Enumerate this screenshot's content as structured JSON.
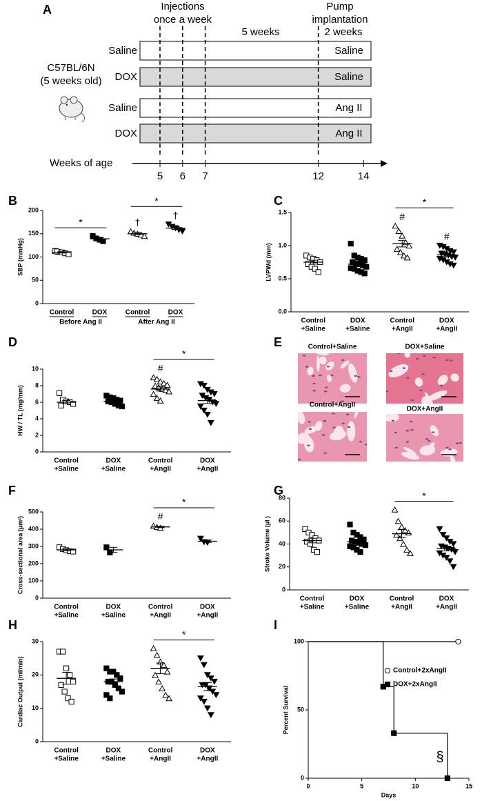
{
  "figure": {
    "panel_a": {
      "panel": "A",
      "header_injections": [
        "Injections",
        "once a week"
      ],
      "header_pump": [
        "Pump",
        "implantation"
      ],
      "periods": [
        "5 weeks",
        "2 weeks"
      ],
      "strain": [
        "C57BL/6N",
        "(5 weeks old)"
      ],
      "rows": [
        {
          "treatment": "Saline",
          "infusion": "Saline",
          "shaded": false
        },
        {
          "treatment": "DOX",
          "infusion": "Saline",
          "shaded": true
        },
        {
          "treatment": "Saline",
          "infusion": "Ang II",
          "shaded": false
        },
        {
          "treatment": "DOX",
          "infusion": "Ang II",
          "shaded": true
        }
      ],
      "axis_label": "Weeks of age",
      "weeks": [
        5,
        6,
        7,
        12,
        14
      ]
    },
    "panel_e": {
      "panel": "E",
      "images": [
        "Control+Saline",
        "DOX+Saline",
        "Control+AngII",
        "DOX+AngII"
      ]
    }
  },
  "chart_data": [
    {
      "type": "dotplot",
      "panel": "B",
      "ylabel": "SBP (mmHg)",
      "ylim": [
        0,
        200
      ],
      "yticks": [
        0,
        50,
        100,
        150,
        200
      ],
      "sections": [
        "Before Ang II",
        "After Ang II"
      ],
      "groups": [
        {
          "label": [
            "Control"
          ],
          "marker": "square-open",
          "values": [
            113,
            111,
            110,
            108,
            106,
            112
          ],
          "mean": 110,
          "sem": 1.5,
          "bracket": "*"
        },
        {
          "label": [
            "DOX"
          ],
          "marker": "square",
          "values": [
            145,
            140,
            137,
            134
          ],
          "mean": 139,
          "sem": 2.5
        },
        {
          "label": [
            "Control"
          ],
          "marker": "triangle-open",
          "values": [
            155,
            152,
            150,
            148,
            145
          ],
          "mean": 150,
          "sem": 2,
          "symbol": "†",
          "bracket": "*"
        },
        {
          "label": [
            "DOX"
          ],
          "marker": "triangle-down",
          "values": [
            170,
            165,
            162,
            158,
            155
          ],
          "mean": 162,
          "sem": 3,
          "symbol": "†"
        }
      ]
    },
    {
      "type": "dotplot",
      "panel": "C",
      "ylabel": "LVPWd (mm)",
      "ylim": [
        0,
        1.5
      ],
      "yticks": [
        {
          "value": 0,
          "label": "0.0"
        },
        {
          "value": 0.5,
          "label": "0.5"
        },
        {
          "value": 1,
          "label": "1.0"
        },
        {
          "value": 1.5,
          "label": "1.5"
        }
      ],
      "groups": [
        {
          "label": [
            "Control",
            "+Saline"
          ],
          "marker": "square-open",
          "values": [
            0.85,
            0.82,
            0.8,
            0.78,
            0.75,
            0.72,
            0.68,
            0.65,
            0.6
          ],
          "mean": 0.75,
          "sem": 0.03
        },
        {
          "label": [
            "DOX",
            "+Saline"
          ],
          "marker": "square",
          "values": [
            1.03,
            0.85,
            0.82,
            0.8,
            0.78,
            0.75,
            0.73,
            0.72,
            0.7,
            0.68,
            0.66,
            0.65,
            0.62,
            0.6,
            0.58
          ],
          "mean": 0.72,
          "sem": 0.03
        },
        {
          "label": [
            "Control",
            "+AngII"
          ],
          "marker": "triangle-open",
          "values": [
            1.3,
            1.22,
            1.15,
            1.05,
            1.0,
            0.95,
            0.9,
            0.85,
            0.82
          ],
          "mean": 1.03,
          "sem": 0.05,
          "symbol": "#",
          "bracket": "*"
        },
        {
          "label": [
            "DOX",
            "+AngII"
          ],
          "marker": "triangle-down",
          "values": [
            1.0,
            0.98,
            0.95,
            0.92,
            0.9,
            0.88,
            0.87,
            0.85,
            0.83,
            0.82,
            0.8,
            0.78,
            0.75,
            0.72,
            0.7
          ],
          "mean": 0.86,
          "sem": 0.02,
          "symbol": "#"
        }
      ]
    },
    {
      "type": "dotplot",
      "panel": "D",
      "ylabel": "HW / TL (mg/mm)",
      "ylim": [
        0,
        10
      ],
      "yticks": [
        0,
        2,
        4,
        6,
        8,
        10
      ],
      "groups": [
        {
          "label": [
            "Control",
            "+Saline"
          ],
          "marker": "square-open",
          "values": [
            7.1,
            6.3,
            6.1,
            6.0,
            5.8,
            5.6
          ],
          "mean": 6.0,
          "sem": 0.2
        },
        {
          "label": [
            "DOX",
            "+Saline"
          ],
          "marker": "square",
          "values": [
            6.8,
            6.6,
            6.5,
            6.3,
            6.2,
            6.1,
            6.0,
            5.8,
            5.6,
            5.5
          ],
          "mean": 6.1,
          "sem": 0.15
        },
        {
          "label": [
            "Control",
            "+AngII"
          ],
          "marker": "triangle-open",
          "values": [
            9.0,
            8.8,
            8.5,
            8.3,
            8.1,
            8.0,
            7.8,
            7.6,
            7.5,
            7.3,
            7.0,
            6.5,
            6.2
          ],
          "mean": 7.6,
          "sem": 0.25,
          "symbol": "#",
          "bracket": "*"
        },
        {
          "label": [
            "DOX",
            "+AngII"
          ],
          "marker": "triangle-down",
          "values": [
            8.2,
            8.0,
            7.5,
            7.2,
            7.0,
            6.8,
            6.5,
            6.3,
            6.0,
            5.8,
            5.5,
            5.0,
            4.5,
            3.5
          ],
          "mean": 6.2,
          "sem": 0.35
        }
      ]
    },
    {
      "type": "dotplot",
      "panel": "F",
      "ylabel": "Cross-sectional area (µm²)",
      "ylim": [
        0,
        500
      ],
      "yticks": [
        0,
        100,
        200,
        300,
        400,
        500
      ],
      "groups": [
        {
          "label": [
            "Control",
            "+Saline"
          ],
          "marker": "square-open",
          "values": [
            295,
            285,
            278,
            272,
            270
          ],
          "mean": 280,
          "sem": 5
        },
        {
          "label": [
            "DOX",
            "+Saline"
          ],
          "marker": "square",
          "values": [
            295,
            265
          ],
          "mean": 280,
          "sem": 15
        },
        {
          "label": [
            "Control",
            "+AngII"
          ],
          "marker": "triangle-open",
          "values": [
            420,
            412,
            408
          ],
          "mean": 413,
          "sem": 4,
          "symbol": "#",
          "bracket": "*"
        },
        {
          "label": [
            "DOX",
            "+AngII"
          ],
          "marker": "triangle-down",
          "values": [
            345,
            325,
            322
          ],
          "mean": 330,
          "sem": 7
        }
      ]
    },
    {
      "type": "dotplot",
      "panel": "G",
      "ylabel": "Stroke Volume (µl )",
      "ylim": [
        0,
        80
      ],
      "yticks": [
        0,
        20,
        40,
        60,
        80
      ],
      "groups": [
        {
          "label": [
            "Control",
            "+Saline"
          ],
          "marker": "square-open",
          "values": [
            53,
            50,
            48,
            45,
            43,
            42,
            40,
            35,
            33
          ],
          "mean": 43,
          "sem": 2
        },
        {
          "label": [
            "DOX",
            "+Saline"
          ],
          "marker": "square",
          "values": [
            57,
            50,
            48,
            46,
            44,
            43,
            42,
            41,
            40,
            39,
            38,
            37,
            35,
            33
          ],
          "mean": 42,
          "sem": 1.5
        },
        {
          "label": [
            "Control",
            "+AngII"
          ],
          "marker": "triangle-open",
          "values": [
            70,
            60,
            55,
            52,
            50,
            48,
            45,
            40,
            35,
            32
          ],
          "mean": 49,
          "sem": 3.5,
          "bracket": "*"
        },
        {
          "label": [
            "DOX",
            "+AngII"
          ],
          "marker": "triangle-down",
          "values": [
            53,
            48,
            45,
            42,
            40,
            38,
            37,
            36,
            35,
            33,
            32,
            30,
            28,
            25,
            20
          ],
          "mean": 36,
          "sem": 2
        }
      ]
    },
    {
      "type": "dotplot",
      "panel": "H",
      "ylabel": "Cardiac Output (ml/min)",
      "ylim": [
        0,
        30
      ],
      "yticks": [
        0,
        10,
        20,
        30
      ],
      "groups": [
        {
          "label": [
            "Control",
            "+Saline"
          ],
          "marker": "square-open",
          "values": [
            27,
            27,
            22,
            20,
            18,
            17,
            15,
            13,
            12
          ],
          "mean": 19,
          "sem": 1.8
        },
        {
          "label": [
            "DOX",
            "+Saline"
          ],
          "marker": "square",
          "values": [
            22,
            21,
            21,
            20,
            19,
            18,
            18,
            17,
            16,
            15,
            14,
            13
          ],
          "mean": 18,
          "sem": 0.8
        },
        {
          "label": [
            "Control",
            "+AngII"
          ],
          "marker": "triangle-open",
          "values": [
            28,
            26,
            24,
            23,
            21,
            20,
            18,
            16,
            14,
            13
          ],
          "mean": 22,
          "sem": 1.6,
          "bracket": "*"
        },
        {
          "label": [
            "DOX",
            "+AngII"
          ],
          "marker": "triangle-down",
          "values": [
            25,
            23,
            20,
            19,
            18,
            17,
            17,
            16,
            15,
            14,
            13,
            12,
            10,
            8
          ],
          "mean": 16.5,
          "sem": 1.2
        }
      ]
    },
    {
      "type": "survival",
      "panel": "I",
      "ylabel": "Percent Survival",
      "xlabel": "Days",
      "xlim": [
        0,
        15
      ],
      "xticks": [
        0,
        5,
        10,
        15
      ],
      "ylim": [
        0,
        100
      ],
      "yticks": [
        0,
        50,
        100
      ],
      "annotation": "§",
      "series": [
        {
          "name": "Control+2xAngII",
          "marker": "circle-open",
          "x": [
            0,
            14
          ],
          "values": [
            100,
            100
          ]
        },
        {
          "name": "DOX+2xAngII",
          "marker": "square",
          "x": [
            0,
            7,
            8,
            13
          ],
          "values": [
            100,
            67,
            33,
            0
          ]
        }
      ]
    }
  ]
}
